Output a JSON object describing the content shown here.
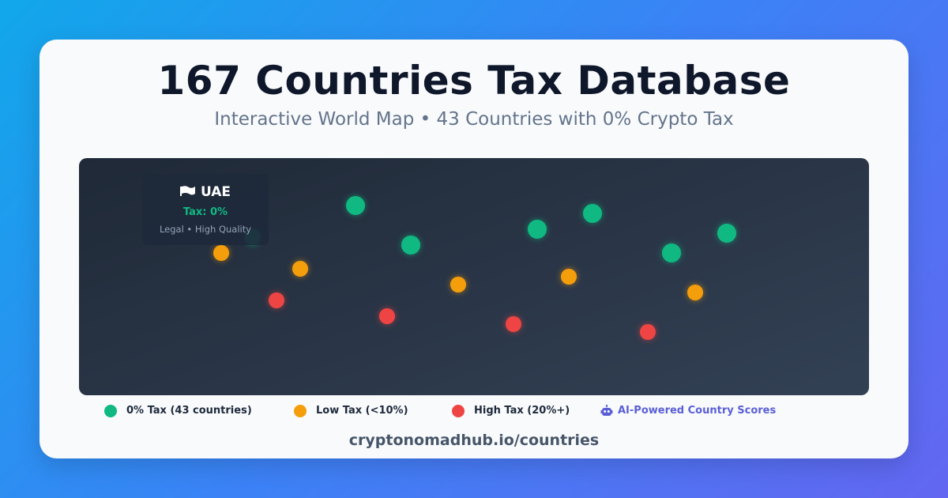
{
  "header": {
    "title": "167 Countries Tax Database",
    "subtitle": "Interactive World Map • 43 Countries with 0% Crypto Tax"
  },
  "colors": {
    "zero_tax": "#10b981",
    "low_tax": "#f59e0b",
    "high_tax": "#ef4444",
    "ai_accent": "#5b5fd6"
  },
  "tooltip": {
    "country": "UAE",
    "tax": "Tax: 0%",
    "meta": "Legal • High Quality",
    "icon": "flag-icon"
  },
  "legend": {
    "zero": "0% Tax (43 countries)",
    "low": "Low Tax (<10%)",
    "high": "High Tax (20%+)",
    "ai": "AI-Powered Country Scores",
    "ai_icon": "robot-icon"
  },
  "footer": {
    "url": "cryptonomadhub.io/countries"
  }
}
